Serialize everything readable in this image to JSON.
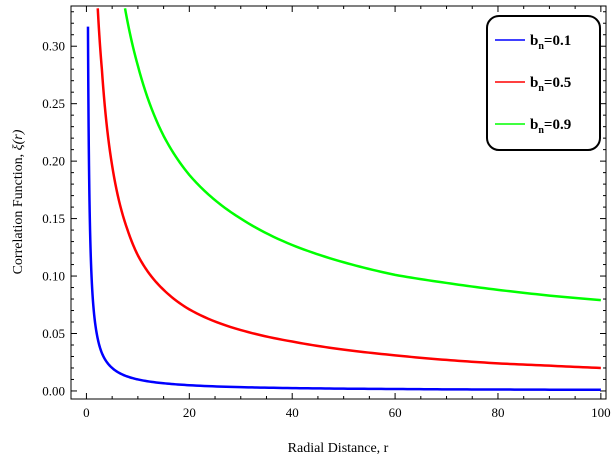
{
  "chart_data": {
    "type": "line",
    "xlabel": "Radial Distance, r",
    "ylabel_prefix": "Correlation Function, ",
    "ylabel_symbol": "ξ(r)",
    "xlim": [
      -3,
      101
    ],
    "ylim": [
      -0.007,
      0.335
    ],
    "x_ticks": [
      0,
      20,
      40,
      60,
      80,
      100
    ],
    "x_tick_labels": [
      "0",
      "20",
      "40",
      "60",
      "80",
      "100"
    ],
    "y_ticks": [
      0.0,
      0.05,
      0.1,
      0.15,
      0.2,
      0.25,
      0.3
    ],
    "y_tick_labels": [
      "0.00",
      "0.05",
      "0.10",
      "0.15",
      "0.20",
      "0.25",
      "0.30"
    ],
    "grid": false,
    "legend_position": "top-right",
    "series": [
      {
        "legend_base": "b",
        "legend_sub": "n",
        "legend_value": "=0.1",
        "color": "#0000ff",
        "x": [
          0.3,
          0.5,
          1,
          2,
          3,
          5,
          8,
          10,
          15,
          20,
          30,
          40,
          50,
          60,
          70,
          80,
          90,
          100
        ],
        "y": [
          0.317,
          0.196,
          0.099,
          0.05,
          0.033,
          0.02,
          0.0125,
          0.01,
          0.0067,
          0.005,
          0.0033,
          0.0025,
          0.002,
          0.0017,
          0.0014,
          0.00125,
          0.0011,
          0.001
        ]
      },
      {
        "legend_base": "b",
        "legend_sub": "n",
        "legend_value": "=0.5",
        "color": "#ff0000",
        "x": [
          2.2,
          3,
          5,
          8,
          10,
          15,
          20,
          30,
          40,
          50,
          60,
          70,
          80,
          90,
          100
        ],
        "y": [
          0.333,
          0.28,
          0.196,
          0.14,
          0.118,
          0.088,
          0.071,
          0.053,
          0.043,
          0.036,
          0.031,
          0.027,
          0.024,
          0.022,
          0.02
        ]
      },
      {
        "legend_base": "b",
        "legend_sub": "n",
        "legend_value": "=0.9",
        "color": "#00ff00",
        "x": [
          7.5,
          10,
          15,
          20,
          30,
          40,
          50,
          60,
          70,
          80,
          90,
          100
        ],
        "y": [
          0.333,
          0.283,
          0.222,
          0.188,
          0.15,
          0.127,
          0.112,
          0.101,
          0.094,
          0.088,
          0.083,
          0.079
        ]
      }
    ]
  }
}
